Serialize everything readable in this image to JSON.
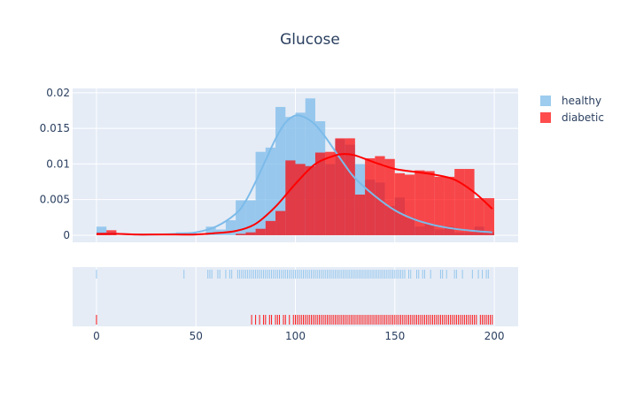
{
  "chart_data": {
    "type": "histogram",
    "title": "Glucose",
    "xlabel": "",
    "ylabel": "",
    "xlim": [
      -12,
      212
    ],
    "ylim": [
      -0.001,
      0.0206
    ],
    "bin_width": 5,
    "bin_starts": [
      0,
      5,
      10,
      15,
      20,
      25,
      30,
      35,
      40,
      45,
      50,
      55,
      60,
      65,
      70,
      75,
      80,
      85,
      90,
      95,
      100,
      105,
      110,
      115,
      120,
      125,
      130,
      135,
      140,
      145,
      150,
      155,
      160,
      165,
      170,
      175,
      180,
      185,
      190,
      195
    ],
    "x_ticks": [
      0,
      50,
      100,
      150,
      200
    ],
    "y_ticks": [
      0,
      0.005,
      0.01,
      0.015,
      0.02
    ],
    "y_tick_labels": [
      "0",
      "0.005",
      "0.01",
      "0.015",
      "0.02"
    ],
    "legend_position": "top-right",
    "grid": true,
    "series": [
      {
        "name": "healthy",
        "color": "#7cbbe9",
        "bar_opacity": 0.75,
        "values": [
          0.0012,
          0.0004,
          0,
          0,
          0,
          0,
          0,
          0,
          0.0004,
          0.0004,
          0,
          0.0012,
          0.0008,
          0.0021,
          0.0049,
          0.0049,
          0.0117,
          0.0123,
          0.018,
          0.0166,
          0.0172,
          0.0192,
          0.016,
          0.01,
          0.0135,
          0.0127,
          0.01,
          0.0078,
          0.0074,
          0.0041,
          0.0053,
          0.0025,
          0.0012,
          0.0016,
          0.0008,
          0.0012,
          0.0004,
          0.0004,
          0.0012,
          0.0004
        ],
        "kde_x": [
          0,
          10,
          20,
          30,
          40,
          50,
          60,
          70,
          75,
          80,
          85,
          90,
          95,
          100,
          105,
          110,
          115,
          120,
          125,
          130,
          140,
          150,
          160,
          170,
          180,
          190,
          199
        ],
        "kde_y": [
          0.0003,
          0.0002,
          0.0001,
          0.0001,
          0.0002,
          0.0004,
          0.0012,
          0.003,
          0.0048,
          0.0075,
          0.0105,
          0.0135,
          0.0158,
          0.0168,
          0.0165,
          0.0155,
          0.0138,
          0.0118,
          0.0098,
          0.008,
          0.0055,
          0.0035,
          0.0022,
          0.0014,
          0.0009,
          0.0006,
          0.0004
        ],
        "rug": [
          0,
          44,
          56,
          57,
          58,
          61,
          62,
          65,
          67,
          68,
          71,
          72,
          73,
          74,
          75,
          76,
          77,
          78,
          79,
          80,
          81,
          82,
          83,
          84,
          85,
          86,
          87,
          88,
          89,
          90,
          91,
          92,
          93,
          94,
          95,
          96,
          97,
          98,
          99,
          100,
          101,
          102,
          103,
          104,
          105,
          106,
          107,
          108,
          109,
          110,
          111,
          112,
          113,
          114,
          115,
          116,
          117,
          118,
          119,
          120,
          121,
          122,
          123,
          124,
          125,
          126,
          127,
          128,
          129,
          130,
          131,
          132,
          133,
          134,
          135,
          136,
          137,
          138,
          139,
          140,
          141,
          142,
          143,
          144,
          145,
          146,
          147,
          148,
          149,
          150,
          151,
          152,
          153,
          154,
          155,
          157,
          158,
          161,
          162,
          164,
          165,
          168,
          173,
          174,
          176,
          180,
          181,
          184,
          189,
          192,
          194,
          196,
          197
        ]
      },
      {
        "name": "diabetic",
        "color": "#ff0000",
        "bar_opacity": 0.7,
        "values": [
          0.0002,
          0.0007,
          0,
          0,
          0,
          0,
          0,
          0,
          0,
          0,
          0,
          0,
          0,
          0,
          0.0002,
          0.0004,
          0.0009,
          0.002,
          0.0034,
          0.0105,
          0.01,
          0.0097,
          0.0116,
          0.0117,
          0.0136,
          0.0136,
          0.0057,
          0.0108,
          0.0111,
          0.0107,
          0.0087,
          0.0085,
          0.0091,
          0.009,
          0.0082,
          0.0082,
          0.0093,
          0.0093,
          0.0052,
          0.0052
        ],
        "kde_x": [
          0,
          10,
          20,
          30,
          40,
          50,
          60,
          70,
          80,
          90,
          100,
          110,
          120,
          125,
          130,
          140,
          150,
          160,
          170,
          180,
          190,
          199
        ],
        "kde_y": [
          0.0002,
          0.0002,
          0.0001,
          0.0001,
          0.0001,
          0.0001,
          0.0003,
          0.0006,
          0.0016,
          0.004,
          0.0072,
          0.01,
          0.0112,
          0.0114,
          0.0112,
          0.0102,
          0.0093,
          0.0089,
          0.0085,
          0.0078,
          0.006,
          0.0037
        ],
        "rug": [
          0,
          78,
          80,
          82,
          84,
          85,
          87,
          88,
          90,
          91,
          92,
          94,
          95,
          97,
          99,
          100,
          101,
          102,
          103,
          104,
          105,
          106,
          107,
          108,
          109,
          110,
          111,
          112,
          113,
          114,
          115,
          116,
          117,
          118,
          119,
          120,
          121,
          122,
          123,
          124,
          125,
          126,
          127,
          128,
          129,
          130,
          131,
          132,
          133,
          134,
          135,
          136,
          137,
          138,
          139,
          140,
          141,
          142,
          143,
          144,
          145,
          146,
          147,
          148,
          149,
          150,
          151,
          152,
          153,
          154,
          155,
          156,
          157,
          158,
          159,
          160,
          161,
          162,
          163,
          164,
          165,
          166,
          167,
          168,
          169,
          170,
          171,
          172,
          173,
          174,
          175,
          176,
          177,
          178,
          179,
          180,
          181,
          182,
          183,
          184,
          185,
          186,
          187,
          188,
          189,
          190,
          191,
          193,
          194,
          195,
          196,
          197,
          198,
          199
        ]
      }
    ]
  }
}
